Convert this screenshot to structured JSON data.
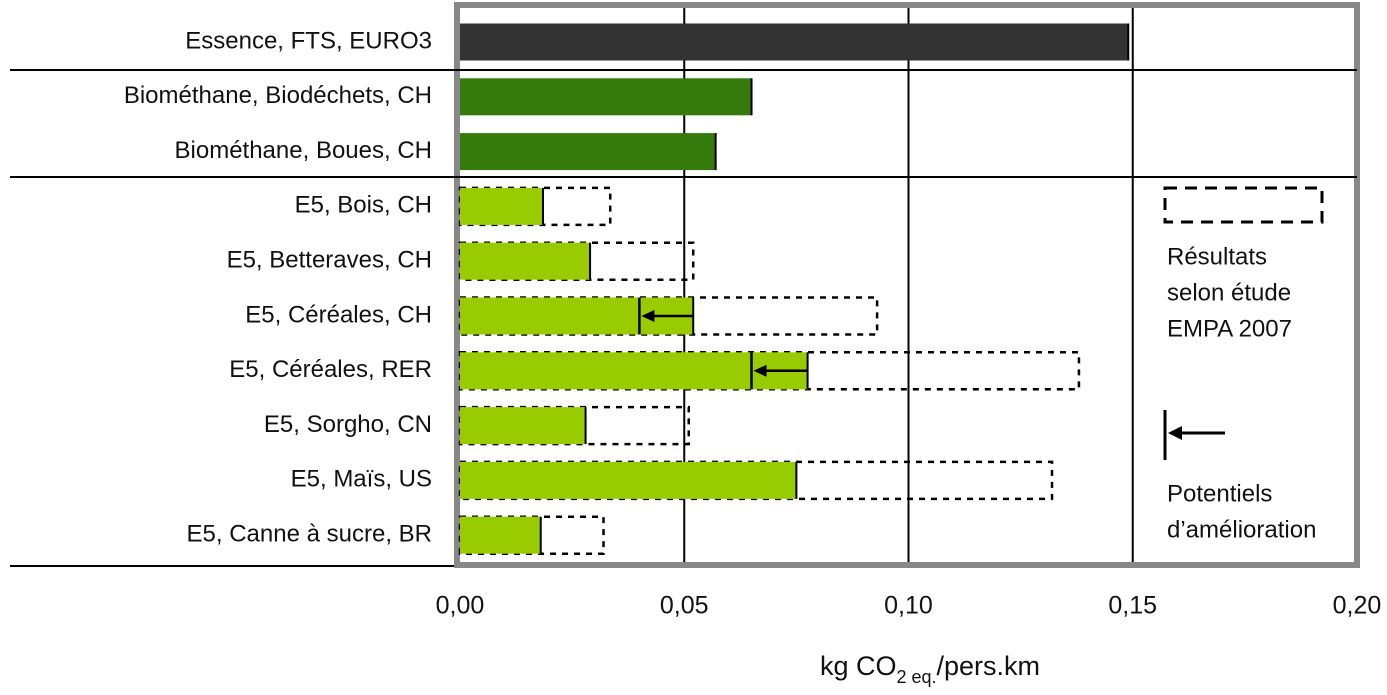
{
  "chart_data": {
    "type": "bar",
    "orientation": "horizontal",
    "categories": [
      "Essence, FTS, EURO3",
      "Biométhane, Biodéchets, CH",
      "Biométhane, Boues, CH",
      "E5, Bois, CH",
      "E5, Betteraves, CH",
      "E5, Céréales, CH",
      "E5, Céréales, RER",
      "E5, Sorgho, CN",
      "E5, Maïs, US",
      "E5, Canne à sucre, BR"
    ],
    "values": [
      0.149,
      0.065,
      0.057,
      0.0185,
      0.029,
      0.052,
      0.0775,
      0.028,
      0.075,
      0.018
    ],
    "colors": [
      "#333333",
      "#347a0c",
      "#347a0c",
      "#99cc00",
      "#99cc00",
      "#99cc00",
      "#99cc00",
      "#99cc00",
      "#99cc00",
      "#99cc00"
    ],
    "series": [
      {
        "name_lines": [
          "Résultats",
          "selon étude",
          "EMPA 2007"
        ],
        "style": "dashed",
        "color": "#000000",
        "values": [
          null,
          null,
          null,
          0.0335,
          0.052,
          0.093,
          0.138,
          0.051,
          0.132,
          0.032
        ]
      },
      {
        "name_lines": [
          "Potentiels",
          "d’amélioration"
        ],
        "style": "arrow",
        "color": "#000000",
        "values": [
          null,
          null,
          null,
          null,
          null,
          0.04,
          0.065,
          null,
          null,
          null
        ]
      }
    ],
    "xlim": [
      0,
      0.2
    ],
    "xticks": [
      {
        "value": 0,
        "label": "0,00"
      },
      {
        "value": 0.05,
        "label": "0,05"
      },
      {
        "value": 0.1,
        "label": "0,10"
      },
      {
        "value": 0.15,
        "label": "0,15"
      },
      {
        "value": 0.2,
        "label": "0,20"
      }
    ],
    "grid": true,
    "x_label": {
      "main": "kg CO",
      "sub": "2 eq.",
      "rest": "/pers.km"
    },
    "legend": "right"
  }
}
